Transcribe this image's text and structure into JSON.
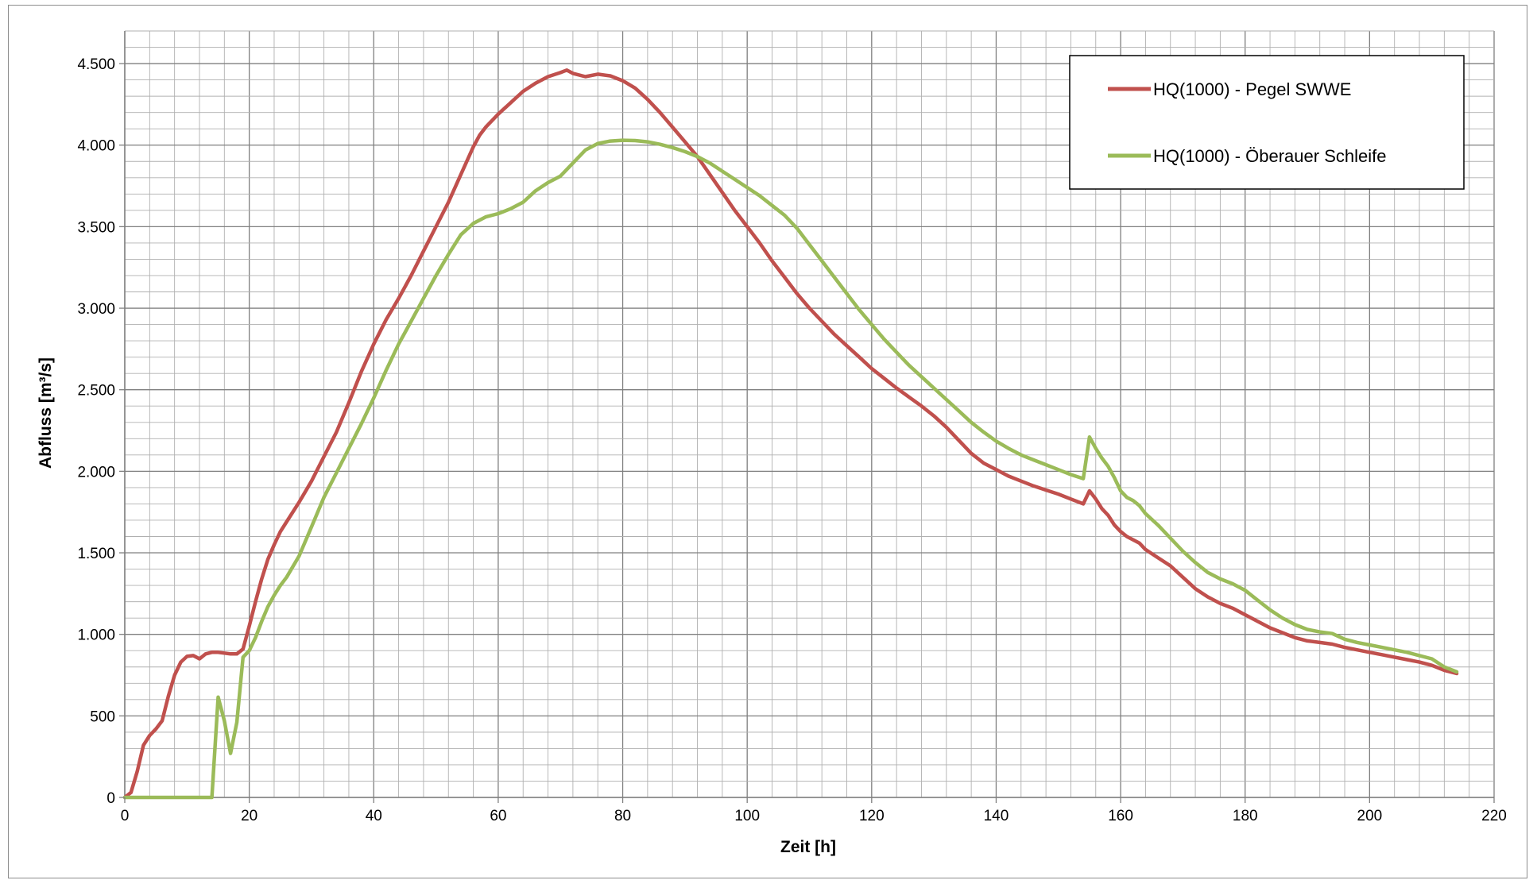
{
  "chart_data": {
    "type": "line",
    "title": "",
    "xlabel": "Zeit [h]",
    "ylabel": "Abfluss [m³/s]",
    "xlim": [
      0,
      220
    ],
    "ylim": [
      0,
      4700
    ],
    "x_ticks": [
      0,
      20,
      40,
      60,
      80,
      100,
      120,
      140,
      160,
      180,
      200,
      220
    ],
    "y_ticks": [
      0,
      500,
      1000,
      1500,
      2000,
      2500,
      3000,
      3500,
      4000,
      4500
    ],
    "y_tick_labels": [
      "0",
      "500",
      "1.000",
      "1.500",
      "2.000",
      "2.500",
      "3.000",
      "3.500",
      "4.000",
      "4.500"
    ],
    "grid": true,
    "legend_position": "top-right",
    "series": [
      {
        "name": "HQ(1000) - Pegel SWWE",
        "color": "#c0504d",
        "points": [
          [
            0,
            0
          ],
          [
            1,
            30
          ],
          [
            2,
            160
          ],
          [
            3,
            320
          ],
          [
            4,
            380
          ],
          [
            5,
            420
          ],
          [
            6,
            470
          ],
          [
            7,
            620
          ],
          [
            8,
            750
          ],
          [
            9,
            830
          ],
          [
            10,
            865
          ],
          [
            11,
            870
          ],
          [
            12,
            850
          ],
          [
            13,
            880
          ],
          [
            14,
            890
          ],
          [
            15,
            890
          ],
          [
            16,
            885
          ],
          [
            17,
            880
          ],
          [
            18,
            880
          ],
          [
            19,
            910
          ],
          [
            20,
            1050
          ],
          [
            21,
            1200
          ],
          [
            22,
            1340
          ],
          [
            23,
            1460
          ],
          [
            24,
            1550
          ],
          [
            25,
            1630
          ],
          [
            26,
            1690
          ],
          [
            28,
            1810
          ],
          [
            30,
            1940
          ],
          [
            32,
            2090
          ],
          [
            34,
            2240
          ],
          [
            36,
            2420
          ],
          [
            38,
            2610
          ],
          [
            40,
            2780
          ],
          [
            42,
            2930
          ],
          [
            44,
            3060
          ],
          [
            46,
            3200
          ],
          [
            48,
            3350
          ],
          [
            50,
            3500
          ],
          [
            52,
            3650
          ],
          [
            54,
            3820
          ],
          [
            56,
            3990
          ],
          [
            57,
            4060
          ],
          [
            58,
            4110
          ],
          [
            60,
            4190
          ],
          [
            62,
            4260
          ],
          [
            64,
            4330
          ],
          [
            66,
            4380
          ],
          [
            68,
            4420
          ],
          [
            70,
            4445
          ],
          [
            71,
            4460
          ],
          [
            72,
            4440
          ],
          [
            74,
            4420
          ],
          [
            76,
            4435
          ],
          [
            78,
            4425
          ],
          [
            80,
            4395
          ],
          [
            82,
            4350
          ],
          [
            84,
            4280
          ],
          [
            86,
            4200
          ],
          [
            88,
            4110
          ],
          [
            90,
            4020
          ],
          [
            92,
            3930
          ],
          [
            94,
            3820
          ],
          [
            96,
            3710
          ],
          [
            98,
            3600
          ],
          [
            100,
            3500
          ],
          [
            102,
            3400
          ],
          [
            104,
            3290
          ],
          [
            106,
            3190
          ],
          [
            108,
            3090
          ],
          [
            110,
            3000
          ],
          [
            112,
            2920
          ],
          [
            114,
            2840
          ],
          [
            116,
            2770
          ],
          [
            118,
            2700
          ],
          [
            120,
            2630
          ],
          [
            122,
            2570
          ],
          [
            124,
            2510
          ],
          [
            126,
            2455
          ],
          [
            128,
            2400
          ],
          [
            130,
            2340
          ],
          [
            132,
            2270
          ],
          [
            134,
            2190
          ],
          [
            136,
            2110
          ],
          [
            138,
            2050
          ],
          [
            140,
            2010
          ],
          [
            142,
            1970
          ],
          [
            144,
            1940
          ],
          [
            146,
            1910
          ],
          [
            148,
            1885
          ],
          [
            150,
            1860
          ],
          [
            152,
            1830
          ],
          [
            154,
            1800
          ],
          [
            155,
            1880
          ],
          [
            156,
            1830
          ],
          [
            157,
            1770
          ],
          [
            158,
            1730
          ],
          [
            159,
            1670
          ],
          [
            160,
            1630
          ],
          [
            161,
            1600
          ],
          [
            162,
            1580
          ],
          [
            163,
            1560
          ],
          [
            164,
            1520
          ],
          [
            166,
            1470
          ],
          [
            168,
            1420
          ],
          [
            170,
            1350
          ],
          [
            172,
            1280
          ],
          [
            174,
            1230
          ],
          [
            176,
            1190
          ],
          [
            178,
            1160
          ],
          [
            180,
            1120
          ],
          [
            182,
            1080
          ],
          [
            184,
            1040
          ],
          [
            186,
            1010
          ],
          [
            188,
            980
          ],
          [
            190,
            960
          ],
          [
            192,
            950
          ],
          [
            194,
            940
          ],
          [
            196,
            920
          ],
          [
            198,
            905
          ],
          [
            200,
            890
          ],
          [
            202,
            875
          ],
          [
            204,
            860
          ],
          [
            206,
            845
          ],
          [
            208,
            830
          ],
          [
            210,
            810
          ],
          [
            212,
            780
          ],
          [
            214,
            760
          ]
        ]
      },
      {
        "name": "HQ(1000) - Öberauer Schleife",
        "color": "#9bbb59",
        "points": [
          [
            0,
            0
          ],
          [
            2,
            0
          ],
          [
            4,
            0
          ],
          [
            6,
            0
          ],
          [
            8,
            0
          ],
          [
            10,
            0
          ],
          [
            12,
            0
          ],
          [
            14,
            0
          ],
          [
            15,
            615
          ],
          [
            16,
            470
          ],
          [
            17,
            270
          ],
          [
            18,
            460
          ],
          [
            19,
            860
          ],
          [
            20,
            900
          ],
          [
            21,
            980
          ],
          [
            22,
            1080
          ],
          [
            23,
            1170
          ],
          [
            24,
            1240
          ],
          [
            25,
            1300
          ],
          [
            26,
            1350
          ],
          [
            28,
            1480
          ],
          [
            30,
            1660
          ],
          [
            32,
            1840
          ],
          [
            34,
            1990
          ],
          [
            36,
            2140
          ],
          [
            38,
            2290
          ],
          [
            40,
            2450
          ],
          [
            42,
            2620
          ],
          [
            44,
            2780
          ],
          [
            46,
            2920
          ],
          [
            48,
            3060
          ],
          [
            50,
            3200
          ],
          [
            52,
            3330
          ],
          [
            54,
            3450
          ],
          [
            56,
            3520
          ],
          [
            58,
            3560
          ],
          [
            60,
            3580
          ],
          [
            62,
            3610
          ],
          [
            64,
            3650
          ],
          [
            66,
            3720
          ],
          [
            68,
            3770
          ],
          [
            70,
            3810
          ],
          [
            72,
            3890
          ],
          [
            74,
            3970
          ],
          [
            76,
            4010
          ],
          [
            78,
            4025
          ],
          [
            80,
            4030
          ],
          [
            82,
            4028
          ],
          [
            84,
            4020
          ],
          [
            86,
            4005
          ],
          [
            88,
            3985
          ],
          [
            90,
            3960
          ],
          [
            92,
            3930
          ],
          [
            94,
            3890
          ],
          [
            96,
            3840
          ],
          [
            98,
            3790
          ],
          [
            100,
            3740
          ],
          [
            102,
            3690
          ],
          [
            104,
            3630
          ],
          [
            106,
            3570
          ],
          [
            108,
            3490
          ],
          [
            110,
            3390
          ],
          [
            112,
            3290
          ],
          [
            114,
            3190
          ],
          [
            116,
            3090
          ],
          [
            118,
            2990
          ],
          [
            120,
            2900
          ],
          [
            122,
            2810
          ],
          [
            124,
            2730
          ],
          [
            126,
            2650
          ],
          [
            128,
            2580
          ],
          [
            130,
            2510
          ],
          [
            132,
            2440
          ],
          [
            134,
            2370
          ],
          [
            136,
            2300
          ],
          [
            138,
            2240
          ],
          [
            140,
            2185
          ],
          [
            142,
            2140
          ],
          [
            144,
            2100
          ],
          [
            146,
            2070
          ],
          [
            148,
            2040
          ],
          [
            150,
            2010
          ],
          [
            152,
            1980
          ],
          [
            154,
            1955
          ],
          [
            155,
            2210
          ],
          [
            156,
            2140
          ],
          [
            157,
            2080
          ],
          [
            158,
            2030
          ],
          [
            159,
            1960
          ],
          [
            160,
            1880
          ],
          [
            161,
            1840
          ],
          [
            162,
            1820
          ],
          [
            163,
            1790
          ],
          [
            164,
            1740
          ],
          [
            166,
            1670
          ],
          [
            168,
            1590
          ],
          [
            170,
            1510
          ],
          [
            172,
            1440
          ],
          [
            174,
            1380
          ],
          [
            176,
            1340
          ],
          [
            178,
            1310
          ],
          [
            180,
            1270
          ],
          [
            182,
            1210
          ],
          [
            184,
            1150
          ],
          [
            186,
            1100
          ],
          [
            188,
            1060
          ],
          [
            190,
            1030
          ],
          [
            192,
            1015
          ],
          [
            194,
            1005
          ],
          [
            196,
            970
          ],
          [
            198,
            950
          ],
          [
            200,
            935
          ],
          [
            202,
            920
          ],
          [
            204,
            905
          ],
          [
            206,
            890
          ],
          [
            208,
            870
          ],
          [
            210,
            850
          ],
          [
            212,
            800
          ],
          [
            214,
            770
          ]
        ]
      }
    ]
  }
}
